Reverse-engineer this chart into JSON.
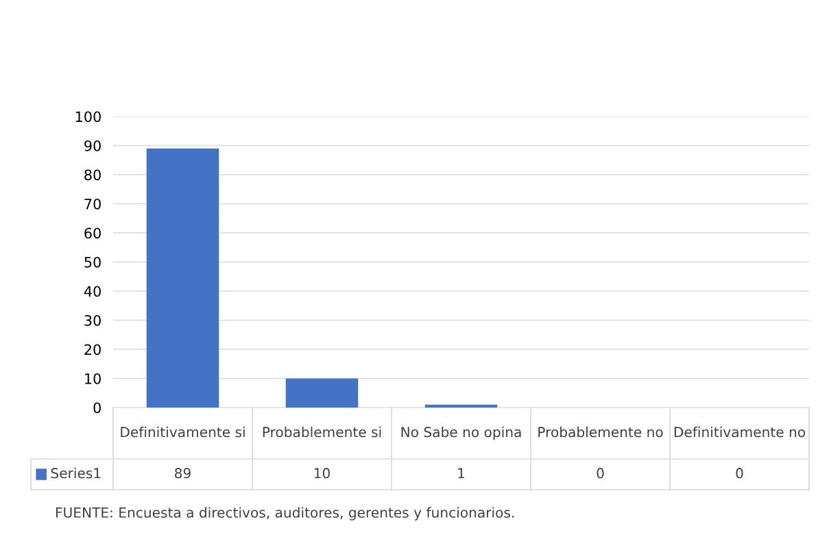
{
  "chart_data": {
    "type": "bar",
    "categories": [
      "Definitivamente si",
      "Probablemente si",
      "No Sabe no opina",
      "Probablemente no",
      "Definitivamente no"
    ],
    "series": [
      {
        "name": "Series1",
        "color": "#4472c4",
        "values": [
          89,
          10,
          1,
          0,
          0
        ]
      }
    ],
    "ylim": [
      0,
      100
    ],
    "yticks": [
      0,
      10,
      20,
      30,
      40,
      50,
      60,
      70,
      80,
      90,
      100
    ],
    "grid": "y",
    "legend": "bottom",
    "data_labels": true,
    "annotations": [
      "FUENTE: Encuesta a directivos, auditores, gerentes y funcionarios."
    ]
  }
}
